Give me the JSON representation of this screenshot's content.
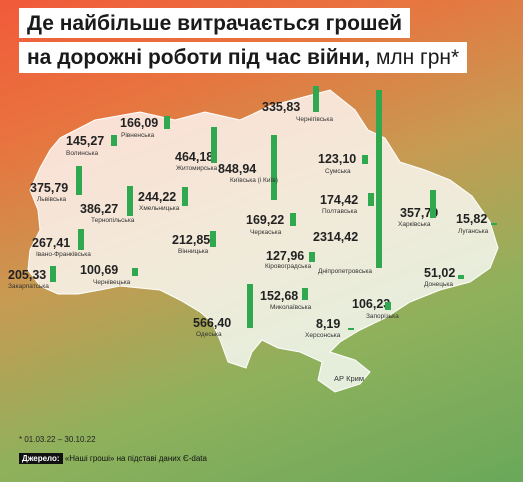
{
  "title": {
    "line1": "Де найбільше витрачається грошей",
    "line2": "на дорожні роботи під час війни,",
    "unit": "млн грн*"
  },
  "regions": [
    {
      "name": "Волинська",
      "value": "145,27",
      "v": 145.27
    },
    {
      "name": "Рівненська",
      "value": "166,09",
      "v": 166.09
    },
    {
      "name": "Чернігівська",
      "value": "335,83",
      "v": 335.83
    },
    {
      "name": "Житомирська",
      "value": "464,18",
      "v": 464.18
    },
    {
      "name": "Сумська",
      "value": "123,10",
      "v": 123.1
    },
    {
      "name": "Львівська",
      "value": "375,79",
      "v": 375.79
    },
    {
      "name": "Київська (і Київ)",
      "value": "848,94",
      "v": 848.94
    },
    {
      "name": "Тернопільська",
      "value": "386,27",
      "v": 386.27
    },
    {
      "name": "Хмельницька",
      "value": "244,22",
      "v": 244.22
    },
    {
      "name": "Полтавська",
      "value": "174,42",
      "v": 174.42
    },
    {
      "name": "Харківська",
      "value": "357,79",
      "v": 357.79
    },
    {
      "name": "Луганська",
      "value": "15,82",
      "v": 15.82
    },
    {
      "name": "Черкаська",
      "value": "169,22",
      "v": 169.22
    },
    {
      "name": "Івано-Франківська",
      "value": "267,41",
      "v": 267.41
    },
    {
      "name": "Вінницька",
      "value": "212,85",
      "v": 212.85
    },
    {
      "name": "Кіровоградська",
      "value": "127,96",
      "v": 127.96
    },
    {
      "name": "Дніпропетровська",
      "value": "2314,42",
      "v": 2314.42
    },
    {
      "name": "Закарпатська",
      "value": "205,33",
      "v": 205.33
    },
    {
      "name": "Чернівецька",
      "value": "100,69",
      "v": 100.69
    },
    {
      "name": "Донецька",
      "value": "51,02",
      "v": 51.02
    },
    {
      "name": "Миколаївська",
      "value": "152,68",
      "v": 152.68
    },
    {
      "name": "Запорізька",
      "value": "106,23",
      "v": 106.23
    },
    {
      "name": "Одеська",
      "value": "566,40",
      "v": 566.4
    },
    {
      "name": "Херсонська",
      "value": "8,19",
      "v": 8.19
    }
  ],
  "crimea_label": "АР Крим",
  "footnote": "* 01.03.22 – 30.10.22",
  "source": {
    "label": "Джерело:",
    "text": "«Наші гроші» на підставі даних Є-data"
  },
  "colors": {
    "bar": "#2fa84f"
  }
}
